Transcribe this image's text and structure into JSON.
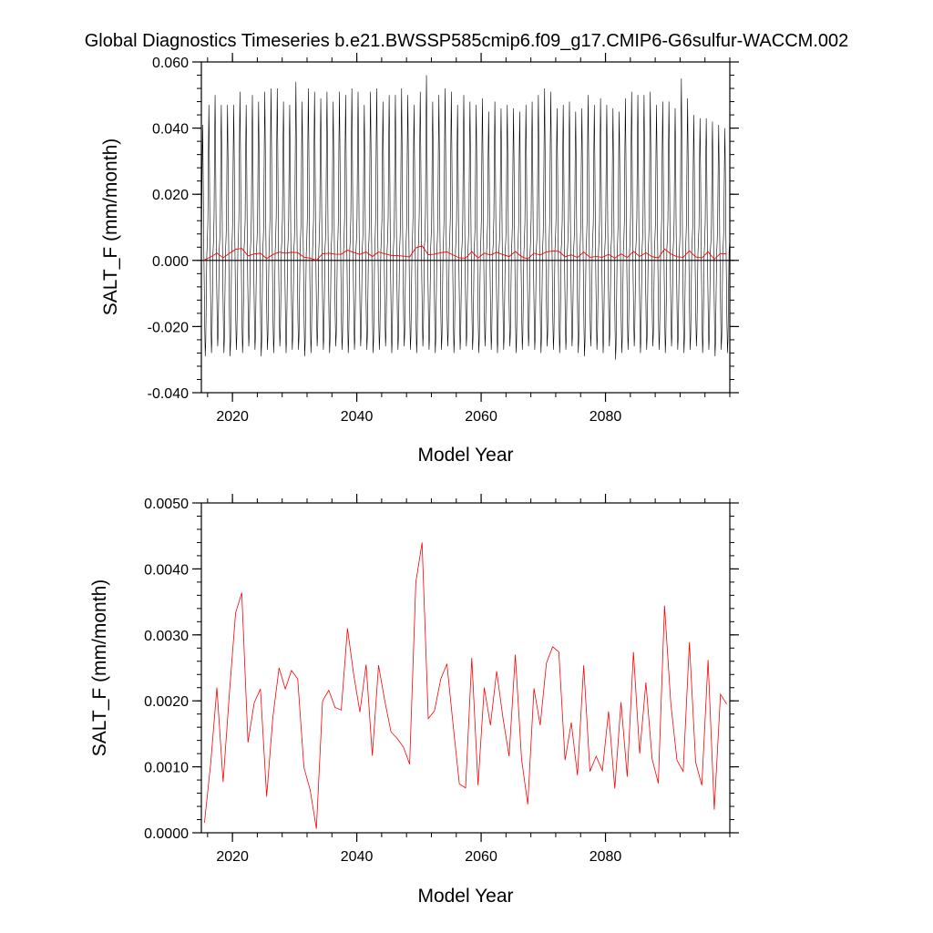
{
  "chart_title": "Global Diagnostics Timeseries b.e21.BWSSP585cmip6.f09_g17.CMIP6-G6sulfur-WACCM.002",
  "colors": {
    "monthly": "#000000",
    "annual": "#ff0000",
    "axes": "#000000"
  },
  "chart_data": [
    {
      "type": "line",
      "xlabel": "Model Year",
      "ylabel": "SALT_F (mm/month)",
      "xlim": [
        2015,
        2100
      ],
      "ylim": [
        -0.04,
        0.06
      ],
      "x_ticks": [
        2020,
        2040,
        2060,
        2080
      ],
      "x_tick_labels": [
        "2020",
        "2040",
        "2060",
        "2080"
      ],
      "y_ticks": [
        -0.04,
        -0.02,
        0.0,
        0.02,
        0.04,
        0.06
      ],
      "y_tick_labels": [
        "-0.040",
        "-0.020",
        "0.000",
        "0.020",
        "0.040",
        "0.060"
      ],
      "zero_line": true,
      "series": [
        {
          "role": "monthly",
          "color": "#000000",
          "seasonal_cycle_approx": [
            0.012,
            0.032,
            0.046,
            0.03,
            0.008,
            -0.006,
            -0.018,
            -0.026,
            -0.022,
            -0.01,
            0.002,
            0.006
          ],
          "annual_peaks": [
            0.041,
            0.047,
            0.05,
            0.047,
            0.047,
            0.047,
            0.051,
            0.047,
            0.05,
            0.048,
            0.051,
            0.052,
            0.052,
            0.048,
            0.047,
            0.054,
            0.048,
            0.052,
            0.051,
            0.049,
            0.051,
            0.048,
            0.051,
            0.05,
            0.052,
            0.051,
            0.047,
            0.051,
            0.052,
            0.048,
            0.05,
            0.05,
            0.052,
            0.05,
            0.047,
            0.051,
            0.056,
            0.048,
            0.05,
            0.052,
            0.051,
            0.047,
            0.05,
            0.048,
            0.047,
            0.049,
            0.045,
            0.048,
            0.046,
            0.047,
            0.046,
            0.045,
            0.047,
            0.048,
            0.05,
            0.052,
            0.051,
            0.046,
            0.047,
            0.048,
            0.045,
            0.046,
            0.05,
            0.047,
            0.049,
            0.047,
            0.046,
            0.045,
            0.049,
            0.051,
            0.05,
            0.05,
            0.051,
            0.047,
            0.048,
            0.048,
            0.046,
            0.055,
            0.049,
            0.044,
            0.043,
            0.043,
            0.042,
            0.041,
            0.04
          ],
          "annual_troughs": [
            -0.029,
            -0.028,
            -0.026,
            -0.028,
            -0.029,
            -0.027,
            -0.028,
            -0.026,
            -0.027,
            -0.029,
            -0.027,
            -0.028,
            -0.026,
            -0.028,
            -0.027,
            -0.027,
            -0.029,
            -0.028,
            -0.026,
            -0.027,
            -0.028,
            -0.026,
            -0.027,
            -0.028,
            -0.027,
            -0.026,
            -0.027,
            -0.028,
            -0.027,
            -0.026,
            -0.028,
            -0.027,
            -0.026,
            -0.027,
            -0.028,
            -0.026,
            -0.027,
            -0.028,
            -0.027,
            -0.026,
            -0.028,
            -0.027,
            -0.026,
            -0.027,
            -0.028,
            -0.026,
            -0.027,
            -0.028,
            -0.027,
            -0.026,
            -0.028,
            -0.027,
            -0.026,
            -0.027,
            -0.028,
            -0.026,
            -0.027,
            -0.028,
            -0.027,
            -0.026,
            -0.028,
            -0.029,
            -0.026,
            -0.027,
            -0.028,
            -0.026,
            -0.03,
            -0.028,
            -0.027,
            -0.026,
            -0.028,
            -0.027,
            -0.026,
            -0.027,
            -0.028,
            -0.026,
            -0.027,
            -0.028,
            -0.027,
            -0.026,
            -0.028,
            -0.027,
            -0.029,
            -0.027,
            -0.028
          ]
        },
        {
          "role": "annual",
          "color": "#ff0000",
          "x": [
            2015.5,
            2016.5,
            2017.5,
            2018.5,
            2019.5,
            2020.5,
            2021.5,
            2022.5,
            2023.5,
            2024.5,
            2025.5,
            2026.5,
            2027.5,
            2028.5,
            2029.5,
            2030.5,
            2031.5,
            2032.5,
            2033.5,
            2034.5,
            2035.5,
            2036.5,
            2037.5,
            2038.5,
            2039.5,
            2040.5,
            2041.5,
            2042.5,
            2043.5,
            2044.5,
            2045.5,
            2046.5,
            2047.5,
            2048.5,
            2049.5,
            2050.5,
            2051.5,
            2052.5,
            2053.5,
            2054.5,
            2055.5,
            2056.5,
            2057.5,
            2058.5,
            2059.5,
            2060.5,
            2061.5,
            2062.5,
            2063.5,
            2064.5,
            2065.5,
            2066.5,
            2067.5,
            2068.5,
            2069.5,
            2070.5,
            2071.5,
            2072.5,
            2073.5,
            2074.5,
            2075.5,
            2076.5,
            2077.5,
            2078.5,
            2079.5,
            2080.5,
            2081.5,
            2082.5,
            2083.5,
            2084.5,
            2085.5,
            2086.5,
            2087.5,
            2088.5,
            2089.5,
            2090.5,
            2091.5,
            2092.5,
            2093.5,
            2094.5,
            2095.5,
            2096.5,
            2097.5,
            2098.5,
            2099.5
          ],
          "values": [
            0.00015,
            0.00105,
            0.0022,
            0.00077,
            0.0021,
            0.00333,
            0.00364,
            0.00137,
            0.00197,
            0.00218,
            0.00055,
            0.00175,
            0.0025,
            0.00218,
            0.00246,
            0.00233,
            0.00099,
            0.00065,
            6e-05,
            0.002,
            0.00216,
            0.0019,
            0.00186,
            0.0031,
            0.0024,
            0.00183,
            0.00255,
            0.00117,
            0.00254,
            0.002,
            0.00153,
            0.00143,
            0.0013,
            0.00104,
            0.0038,
            0.0044,
            0.00173,
            0.00185,
            0.00233,
            0.00256,
            0.00163,
            0.00074,
            0.00068,
            0.00265,
            0.00072,
            0.0022,
            0.00163,
            0.00245,
            0.00175,
            0.00116,
            0.0027,
            0.00112,
            0.00043,
            0.00219,
            0.00163,
            0.00257,
            0.00282,
            0.00274,
            0.0011,
            0.00167,
            0.00087,
            0.00254,
            0.00093,
            0.00116,
            0.00094,
            0.00184,
            0.00067,
            0.00198,
            0.00085,
            0.00274,
            0.0012,
            0.00228,
            0.00112,
            0.00075,
            0.00344,
            0.00197,
            0.0011,
            0.00093,
            0.00289,
            0.00107,
            0.00072,
            0.00262,
            0.00035,
            0.0021,
            0.00195
          ]
        }
      ]
    },
    {
      "type": "line",
      "xlabel": "Model Year",
      "ylabel": "SALT_F (mm/month)",
      "xlim": [
        2015,
        2100
      ],
      "ylim": [
        0.0,
        0.005
      ],
      "x_ticks": [
        2020,
        2040,
        2060,
        2080
      ],
      "x_tick_labels": [
        "2020",
        "2040",
        "2060",
        "2080"
      ],
      "y_ticks": [
        0.0,
        0.001,
        0.002,
        0.003,
        0.004,
        0.005
      ],
      "y_tick_labels": [
        "0.0000",
        "0.0010",
        "0.0020",
        "0.0030",
        "0.0040",
        "0.0050"
      ],
      "zero_line": false,
      "series": [
        {
          "role": "annual",
          "color": "#ff0000",
          "same_as_top_annual": true
        }
      ]
    }
  ]
}
